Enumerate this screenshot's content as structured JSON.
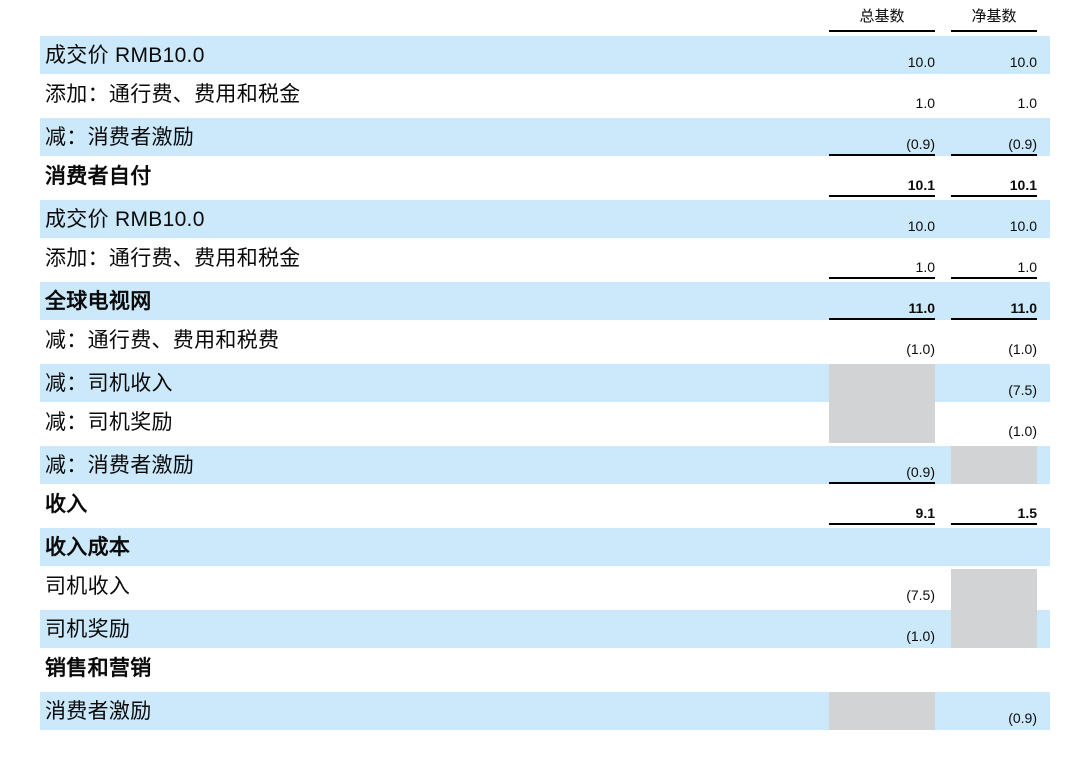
{
  "header": {
    "col1": "总基数",
    "col2": "净基数"
  },
  "rows": [
    {
      "label": "成交价 RMB10.0",
      "gross": "10.0",
      "net": "10.0",
      "shade": "blue",
      "bold": false,
      "rule": false
    },
    {
      "label": "添加：通行费、费用和税金",
      "gross": "1.0",
      "net": "1.0",
      "shade": "white",
      "bold": false,
      "rule": false
    },
    {
      "label": "减：消费者激励",
      "gross": "(0.9)",
      "net": "(0.9)",
      "shade": "blue",
      "bold": false,
      "rule": true
    },
    {
      "label": "消费者自付",
      "gross": "10.1",
      "net": "10.1",
      "shade": "white",
      "bold": true,
      "rule": true
    },
    {
      "label": "成交价 RMB10.0",
      "gross": "10.0",
      "net": "10.0",
      "shade": "blue",
      "bold": false,
      "rule": false
    },
    {
      "label": "添加：通行费、费用和税金",
      "gross": "1.0",
      "net": "1.0",
      "shade": "white",
      "bold": false,
      "rule": true
    },
    {
      "label": "全球电视网",
      "gross": "11.0",
      "net": "11.0",
      "shade": "blue",
      "bold": true,
      "rule": true
    },
    {
      "label": "减：通行费、费用和税费",
      "gross": "(1.0)",
      "net": "(1.0)",
      "shade": "white",
      "bold": false,
      "rule": false
    },
    {
      "label": "减：司机收入",
      "gross": "",
      "net": "(7.5)",
      "shade": "blue",
      "bold": false,
      "rule": false,
      "gross_masked": true
    },
    {
      "label": "减：司机奖励",
      "gross": "",
      "net": "(1.0)",
      "shade": "white",
      "bold": false,
      "rule": false,
      "gross_masked": true
    },
    {
      "label": "减：消费者激励",
      "gross": "(0.9)",
      "net": "",
      "shade": "blue",
      "bold": false,
      "rule": true,
      "net_masked": true
    },
    {
      "label": "收入",
      "gross": "9.1",
      "net": "1.5",
      "shade": "white",
      "bold": true,
      "rule": true
    },
    {
      "label": "收入成本",
      "gross": "",
      "net": "",
      "shade": "blue",
      "bold": true,
      "rule": false
    },
    {
      "label": "司机收入",
      "gross": "(7.5)",
      "net": "",
      "shade": "white",
      "bold": false,
      "rule": false,
      "net_masked": true
    },
    {
      "label": "司机奖励",
      "gross": "(1.0)",
      "net": "",
      "shade": "blue",
      "bold": false,
      "rule": false,
      "net_masked": true
    },
    {
      "label": "销售和营销",
      "gross": "",
      "net": "",
      "shade": "white",
      "bold": true,
      "rule": false
    },
    {
      "label": "消费者激励",
      "gross": "",
      "net": "(0.9)",
      "shade": "blue",
      "bold": false,
      "rule": false,
      "gross_masked": true
    }
  ],
  "colors": {
    "row_highlight": "#cbe9fb",
    "masked_cell": "#d1d3d4",
    "rule": "#000000"
  }
}
